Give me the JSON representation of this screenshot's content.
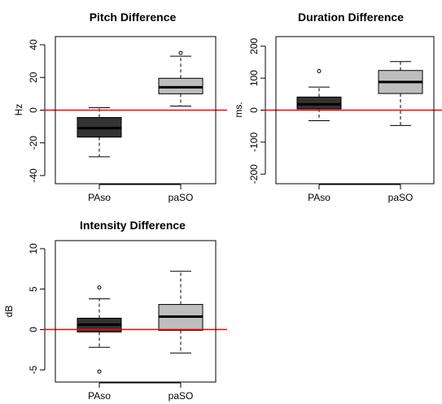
{
  "chart_data": [
    {
      "type": "box",
      "title": "Pitch Difference",
      "ylabel": "Hz",
      "ylim": [
        -45,
        45
      ],
      "yticks": [
        -40,
        -20,
        0,
        20,
        40
      ],
      "reference_line": {
        "y": 0,
        "color": "#ff0000"
      },
      "categories": [
        "PAso",
        "paSO"
      ],
      "boxes": [
        {
          "category": "PAso",
          "whisker_low": -28.5,
          "q1": -16.5,
          "median": -11,
          "q3": -4.5,
          "whisker_high": 1.5,
          "outliers": [],
          "fill": "#333333"
        },
        {
          "category": "paSO",
          "whisker_low": 2.5,
          "q1": 10,
          "median": 14,
          "q3": 19.5,
          "whisker_high": 33,
          "outliers": [
            35
          ],
          "fill": "#bebebe"
        }
      ]
    },
    {
      "type": "box",
      "title": "Duration Difference",
      "ylabel": "ms.",
      "ylim": [
        -230,
        230
      ],
      "yticks": [
        -200,
        -100,
        0,
        100,
        200
      ],
      "reference_line": {
        "y": 0,
        "color": "#ff0000"
      },
      "categories": [
        "PAso",
        "paSO"
      ],
      "boxes": [
        {
          "category": "PAso",
          "whisker_low": -33,
          "q1": 4,
          "median": 18,
          "q3": 41,
          "whisker_high": 72,
          "outliers": [
            122
          ],
          "fill": "#333333"
        },
        {
          "category": "paSO",
          "whisker_low": -48,
          "q1": 52,
          "median": 88,
          "q3": 124,
          "whisker_high": 152,
          "outliers": [],
          "fill": "#bebebe"
        }
      ]
    },
    {
      "type": "box",
      "title": "Intensity Difference",
      "ylabel": "dB",
      "ylim": [
        -6.5,
        11
      ],
      "yticks": [
        -5,
        0,
        5,
        10
      ],
      "reference_line": {
        "y": 0,
        "color": "#ff0000"
      },
      "categories": [
        "PAso",
        "paSO"
      ],
      "boxes": [
        {
          "category": "PAso",
          "whisker_low": -2.2,
          "q1": -0.3,
          "median": 0.6,
          "q3": 1.4,
          "whisker_high": 3.8,
          "outliers": [
            5.2,
            -5.2
          ],
          "fill": "#333333"
        },
        {
          "category": "paSO",
          "whisker_low": -2.9,
          "q1": -0.1,
          "median": 1.6,
          "q3": 3.1,
          "whisker_high": 7.2,
          "outliers": [],
          "fill": "#bebebe"
        }
      ]
    }
  ]
}
